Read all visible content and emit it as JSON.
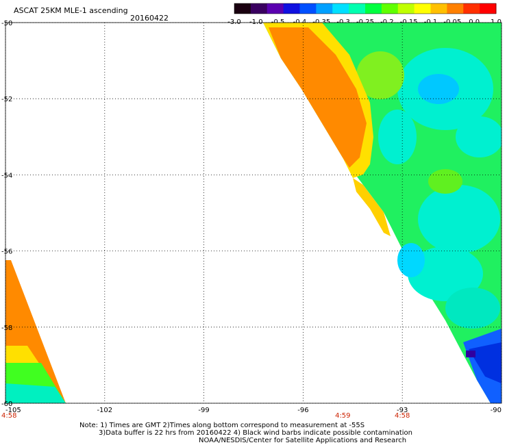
{
  "title": "ASCAT 25KM MLE-1 ascending",
  "date": "20160422",
  "colorbar": {
    "labels": [
      "-3.0",
      "-1.0",
      "-0.5",
      "-0.4",
      "-0.35",
      "-0.3",
      "-0.25",
      "-0.2",
      "-0.15",
      "-0.1",
      "-0.05",
      "0.0",
      "1.0"
    ],
    "colors": [
      "#1a0010",
      "#3a0060",
      "#5a00b0",
      "#1010e0",
      "#0050ff",
      "#00a0ff",
      "#00e0ff",
      "#00ffb0",
      "#00ff40",
      "#60ff00",
      "#c0ff00",
      "#ffff00",
      "#ffc000",
      "#ff8000",
      "#ff3000",
      "#ff0000"
    ]
  },
  "axes": {
    "lat_labels": [
      "-50",
      "-52",
      "-54",
      "-56",
      "-58",
      "-60"
    ],
    "lon_labels": [
      "-105",
      "-102",
      "-99",
      "-96",
      "-93",
      "-90"
    ]
  },
  "time_labels": [
    {
      "text": "4:58",
      "lon": -105
    },
    {
      "text": "4:59",
      "lon": -94.8
    },
    {
      "text": "4:58",
      "lon": -93
    }
  ],
  "notes": {
    "line1": "Note: 1) Times are GMT 2)Times along bottom correspond to measurement at -55S",
    "line2": "3)Data buffer is 22 hrs from 20160422 4) Black wind barbs indicate possible contamination",
    "line3": "NOAA/NESDIS/Center for Satellite Applications and Research"
  }
}
